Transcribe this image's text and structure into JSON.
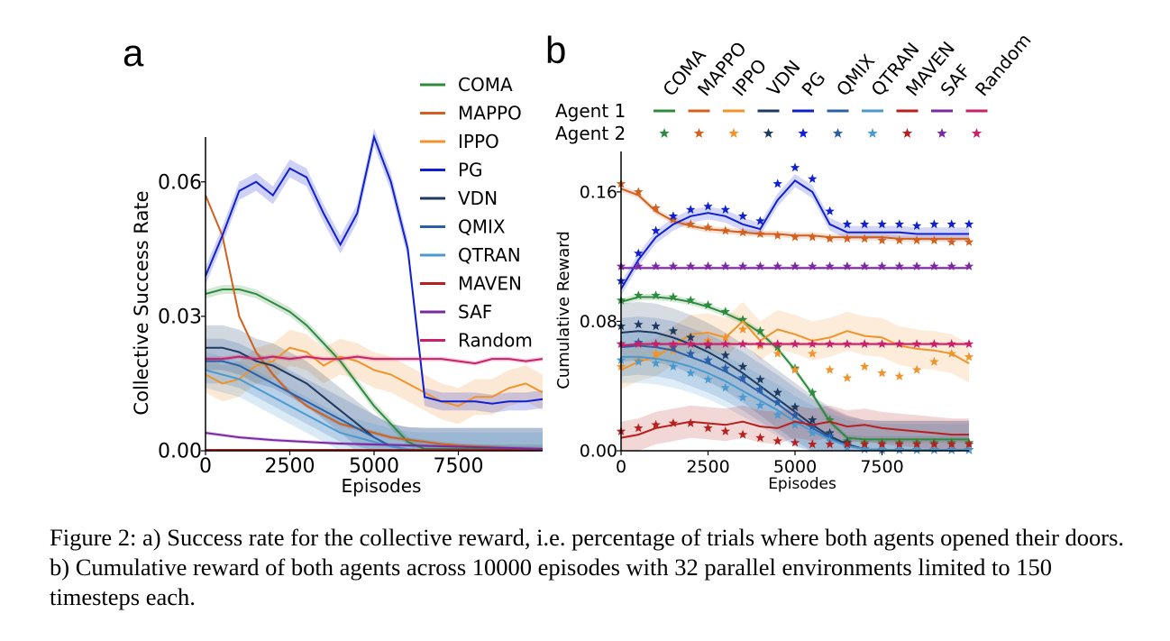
{
  "caption": "Figure 2: a) Success rate for the collective reward, i.e. percentage of trials where both agents opened their doors. b) Cumulative reward of both agents across 10000 episodes with 32 parallel environments limited to 150 timesteps each.",
  "colors": {
    "COMA": "#2e8b3e",
    "MAPPO": "#d2601e",
    "IPPO": "#f0932b",
    "PG": "#1020d0",
    "VDN": "#1f3a60",
    "QMIX": "#2a60a8",
    "QTRAN": "#4a9ad0",
    "MAVEN": "#b82020",
    "SAF": "#7a2aa0",
    "Random": "#c8206a"
  },
  "chart_data": [
    {
      "type": "line",
      "panel": "a",
      "xlabel": "Episodes",
      "ylabel": "Collective Success Rate",
      "xlim": [
        0,
        10000
      ],
      "ylim": [
        0,
        0.07
      ],
      "xticks": [
        "0",
        "2500",
        "5000",
        "7500"
      ],
      "xtick_values": [
        0,
        2500,
        5000,
        7500
      ],
      "yticks": [
        "0.00",
        "0.03",
        "0.06"
      ],
      "ytick_values": [
        0,
        0.03,
        0.06
      ],
      "legend": [
        "COMA",
        "MAPPO",
        "IPPO",
        "PG",
        "VDN",
        "QMIX",
        "QTRAN",
        "MAVEN",
        "SAF",
        "Random"
      ],
      "legend_position": "upper-right-outside",
      "x": [
        0,
        500,
        1000,
        1500,
        2000,
        2500,
        3000,
        3500,
        4000,
        4500,
        5000,
        5500,
        6000,
        6500,
        7000,
        7500,
        8000,
        8500,
        9000,
        9500,
        10000
      ],
      "series": [
        {
          "name": "COMA",
          "values": [
            0.035,
            0.036,
            0.036,
            0.035,
            0.033,
            0.031,
            0.028,
            0.024,
            0.02,
            0.015,
            0.01,
            0.006,
            0.002,
            0.0004,
            0.0004,
            0.0004,
            0.0004,
            0.0004,
            0.0004,
            0.0004,
            0.0004
          ],
          "band": 0.001
        },
        {
          "name": "MAPPO",
          "values": [
            0.057,
            0.048,
            0.03,
            0.022,
            0.017,
            0.013,
            0.01,
            0.008,
            0.006,
            0.005,
            0.004,
            0.003,
            0.0025,
            0.002,
            0.0015,
            0.0012,
            0.001,
            0.0008,
            0.0006,
            0.0005,
            0.0004
          ],
          "band": 0.0005
        },
        {
          "name": "IPPO",
          "values": [
            0.017,
            0.015,
            0.016,
            0.019,
            0.02,
            0.023,
            0.022,
            0.019,
            0.021,
            0.02,
            0.018,
            0.017,
            0.015,
            0.013,
            0.011,
            0.01,
            0.012,
            0.012,
            0.014,
            0.015,
            0.013
          ],
          "band": 0.004
        },
        {
          "name": "PG",
          "values": [
            0.039,
            0.048,
            0.058,
            0.06,
            0.057,
            0.063,
            0.061,
            0.053,
            0.046,
            0.053,
            0.07,
            0.06,
            0.045,
            0.012,
            0.011,
            0.011,
            0.011,
            0.0105,
            0.011,
            0.011,
            0.0115
          ],
          "band": 0.002
        },
        {
          "name": "VDN",
          "values": [
            0.023,
            0.023,
            0.022,
            0.02,
            0.019,
            0.017,
            0.015,
            0.012,
            0.009,
            0.006,
            0.003,
            0.001,
            0.0003,
            0.0001,
            0.0001,
            0.0001,
            0.0001,
            0.0001,
            0.0001,
            0.0001,
            0.0001
          ],
          "band": 0.005
        },
        {
          "name": "QMIX",
          "values": [
            0.02,
            0.02,
            0.019,
            0.017,
            0.015,
            0.013,
            0.011,
            0.009,
            0.007,
            0.005,
            0.003,
            0.001,
            0.0003,
            0.0001,
            0.0001,
            0.0001,
            0.0001,
            0.0001,
            0.0001,
            0.0001,
            0.0001
          ],
          "band": 0.005
        },
        {
          "name": "QTRAN",
          "values": [
            0.018,
            0.017,
            0.016,
            0.014,
            0.012,
            0.01,
            0.008,
            0.006,
            0.004,
            0.003,
            0.002,
            0.001,
            0.0003,
            0.0001,
            0.0001,
            0.0001,
            0.0001,
            0.0001,
            0.0001,
            0.0001,
            0.0001
          ],
          "band": 0.004
        },
        {
          "name": "MAVEN",
          "values": [
            0.0002,
            0.0002,
            0.0002,
            0.0002,
            0.0002,
            0.0002,
            0.0002,
            0.0002,
            0.0002,
            0.0002,
            0.0002,
            0.0002,
            0.0002,
            0.0002,
            0.0002,
            0.0002,
            0.0002,
            0.0002,
            0.0002,
            0.0002,
            0.0002
          ],
          "band": 0.0002
        },
        {
          "name": "SAF",
          "values": [
            0.004,
            0.0035,
            0.003,
            0.0027,
            0.0024,
            0.0022,
            0.002,
            0.0018,
            0.0016,
            0.0015,
            0.0014,
            0.0013,
            0.0012,
            0.0011,
            0.001,
            0.0009,
            0.0008,
            0.0007,
            0.0006,
            0.0005,
            0.0004
          ],
          "band": 0.0004
        },
        {
          "name": "Random",
          "values": [
            0.0205,
            0.0205,
            0.021,
            0.0205,
            0.021,
            0.0205,
            0.021,
            0.0205,
            0.0205,
            0.021,
            0.0205,
            0.0205,
            0.0205,
            0.0205,
            0.0205,
            0.02,
            0.0195,
            0.0205,
            0.0205,
            0.02,
            0.0205
          ],
          "band": 0.0005
        }
      ]
    },
    {
      "type": "line",
      "panel": "b",
      "xlabel": "Episodes",
      "ylabel": "Cumulative Reward",
      "xlim": [
        0,
        10000
      ],
      "ylim": [
        0,
        0.185
      ],
      "xticks": [
        "0",
        "2500",
        "5000",
        "7500"
      ],
      "xtick_values": [
        0,
        2500,
        5000,
        7500
      ],
      "yticks": [
        "0.00",
        "0.08",
        "0.16"
      ],
      "ytick_values": [
        0,
        0.08,
        0.16
      ],
      "legend_rows": [
        "Agent 1",
        "Agent 2"
      ],
      "legend_columns": [
        "COMA",
        "MAPPO",
        "IPPO",
        "VDN",
        "PG",
        "QMIX",
        "QTRAN",
        "MAVEN",
        "SAF",
        "Random"
      ],
      "legend_position": "top",
      "x": [
        0,
        500,
        1000,
        1500,
        2000,
        2500,
        3000,
        3500,
        4000,
        4500,
        5000,
        5500,
        6000,
        6500,
        7000,
        7500,
        8000,
        8500,
        9000,
        9500,
        10000
      ],
      "series": [
        {
          "name": "COMA",
          "agent1": [
            0.092,
            0.095,
            0.095,
            0.094,
            0.092,
            0.089,
            0.085,
            0.08,
            0.073,
            0.063,
            0.05,
            0.035,
            0.018,
            0.008,
            0.007,
            0.007,
            0.007,
            0.007,
            0.007,
            0.007,
            0.007
          ],
          "agent2": [
            0.093,
            0.096,
            0.096,
            0.095,
            0.093,
            0.09,
            0.086,
            0.081,
            0.074,
            0.064,
            0.051,
            0.036,
            0.019,
            0.006,
            0.005,
            0.005,
            0.005,
            0.005,
            0.005,
            0.005,
            0.005
          ],
          "band": 0.002
        },
        {
          "name": "MAPPO",
          "agent1": [
            0.162,
            0.158,
            0.148,
            0.142,
            0.139,
            0.137,
            0.136,
            0.135,
            0.134,
            0.134,
            0.133,
            0.133,
            0.132,
            0.132,
            0.132,
            0.132,
            0.131,
            0.131,
            0.131,
            0.131,
            0.131
          ],
          "agent2": [
            0.165,
            0.16,
            0.15,
            0.143,
            0.14,
            0.138,
            0.136,
            0.135,
            0.134,
            0.133,
            0.132,
            0.132,
            0.131,
            0.131,
            0.131,
            0.13,
            0.13,
            0.13,
            0.13,
            0.129,
            0.129
          ],
          "band": 0.002
        },
        {
          "name": "IPPO",
          "agent1": [
            0.05,
            0.055,
            0.058,
            0.065,
            0.072,
            0.073,
            0.07,
            0.08,
            0.068,
            0.075,
            0.072,
            0.068,
            0.07,
            0.074,
            0.071,
            0.07,
            0.065,
            0.063,
            0.062,
            0.06,
            0.054
          ],
          "agent2": [
            0.052,
            0.056,
            0.06,
            0.062,
            0.066,
            0.068,
            0.07,
            0.075,
            0.065,
            0.06,
            0.05,
            0.06,
            0.05,
            0.045,
            0.052,
            0.048,
            0.046,
            0.05,
            0.055,
            0.06,
            0.058
          ],
          "band": 0.012
        },
        {
          "name": "VDN",
          "agent1": [
            0.073,
            0.074,
            0.073,
            0.07,
            0.066,
            0.061,
            0.055,
            0.048,
            0.04,
            0.032,
            0.024,
            0.016,
            0.009,
            0.004,
            0.001,
            0.0005,
            0.0005,
            0.0005,
            0.0005,
            0.0005,
            0.0005
          ],
          "agent2": [
            0.077,
            0.078,
            0.077,
            0.074,
            0.07,
            0.065,
            0.059,
            0.052,
            0.044,
            0.036,
            0.027,
            0.019,
            0.011,
            0.005,
            0.001,
            0.0005,
            0.0005,
            0.0005,
            0.0005,
            0.0005,
            0.0005
          ],
          "band": 0.018
        },
        {
          "name": "PG",
          "agent1": [
            0.1,
            0.118,
            0.132,
            0.14,
            0.145,
            0.147,
            0.145,
            0.14,
            0.137,
            0.155,
            0.167,
            0.16,
            0.14,
            0.135,
            0.135,
            0.135,
            0.135,
            0.134,
            0.134,
            0.134,
            0.134
          ],
          "agent2": [
            0.105,
            0.122,
            0.136,
            0.145,
            0.149,
            0.151,
            0.149,
            0.145,
            0.142,
            0.165,
            0.175,
            0.168,
            0.148,
            0.14,
            0.14,
            0.14,
            0.14,
            0.139,
            0.14,
            0.14,
            0.14
          ],
          "band": 0.004
        },
        {
          "name": "QMIX",
          "agent1": [
            0.064,
            0.065,
            0.064,
            0.062,
            0.058,
            0.054,
            0.049,
            0.043,
            0.036,
            0.029,
            0.021,
            0.014,
            0.008,
            0.003,
            0.001,
            0.0005,
            0.0005,
            0.0005,
            0.0005,
            0.0005,
            0.0005
          ],
          "agent2": [
            0.066,
            0.067,
            0.066,
            0.064,
            0.06,
            0.056,
            0.051,
            0.045,
            0.038,
            0.03,
            0.022,
            0.015,
            0.009,
            0.004,
            0.001,
            0.0005,
            0.0005,
            0.0005,
            0.0005,
            0.0005,
            0.0005
          ],
          "band": 0.018
        },
        {
          "name": "QTRAN",
          "agent1": [
            0.058,
            0.058,
            0.057,
            0.055,
            0.052,
            0.048,
            0.043,
            0.037,
            0.031,
            0.025,
            0.018,
            0.012,
            0.007,
            0.003,
            0.001,
            0.0005,
            0.0005,
            0.0005,
            0.0005,
            0.0005,
            0.0005
          ],
          "agent2": [
            0.056,
            0.055,
            0.054,
            0.052,
            0.048,
            0.044,
            0.039,
            0.033,
            0.028,
            0.022,
            0.016,
            0.011,
            0.006,
            0.002,
            0.001,
            0.0005,
            0.0005,
            0.0005,
            0.0005,
            0.0005,
            0.0005
          ],
          "band": 0.016
        },
        {
          "name": "MAVEN",
          "agent1": [
            0.008,
            0.01,
            0.014,
            0.016,
            0.018,
            0.017,
            0.016,
            0.018,
            0.015,
            0.014,
            0.018,
            0.016,
            0.018,
            0.015,
            0.016,
            0.014,
            0.013,
            0.012,
            0.011,
            0.01,
            0.01
          ],
          "agent2": [
            0.012,
            0.014,
            0.016,
            0.017,
            0.017,
            0.014,
            0.012,
            0.01,
            0.008,
            0.006,
            0.005,
            0.004,
            0.004,
            0.004,
            0.004,
            0.004,
            0.004,
            0.004,
            0.004,
            0.004,
            0.004
          ],
          "band": 0.01
        },
        {
          "name": "SAF",
          "agent1": [
            0.113,
            0.113,
            0.113,
            0.113,
            0.113,
            0.113,
            0.113,
            0.113,
            0.113,
            0.113,
            0.113,
            0.113,
            0.113,
            0.113,
            0.113,
            0.113,
            0.113,
            0.113,
            0.113,
            0.113,
            0.113
          ],
          "agent2": [
            0.114,
            0.114,
            0.114,
            0.114,
            0.114,
            0.114,
            0.114,
            0.114,
            0.114,
            0.114,
            0.114,
            0.114,
            0.114,
            0.114,
            0.114,
            0.114,
            0.114,
            0.114,
            0.114,
            0.114,
            0.114
          ],
          "band": 0.001
        },
        {
          "name": "Random",
          "agent1": [
            0.065,
            0.066,
            0.066,
            0.066,
            0.066,
            0.066,
            0.066,
            0.066,
            0.066,
            0.066,
            0.066,
            0.066,
            0.066,
            0.066,
            0.066,
            0.066,
            0.066,
            0.066,
            0.066,
            0.066,
            0.066
          ],
          "agent2": [
            0.066,
            0.066,
            0.066,
            0.066,
            0.066,
            0.066,
            0.066,
            0.066,
            0.066,
            0.066,
            0.066,
            0.066,
            0.066,
            0.066,
            0.066,
            0.066,
            0.066,
            0.066,
            0.066,
            0.066,
            0.066
          ],
          "band": 0.001
        }
      ]
    }
  ],
  "panel_labels": {
    "a": "a",
    "b": "b"
  }
}
